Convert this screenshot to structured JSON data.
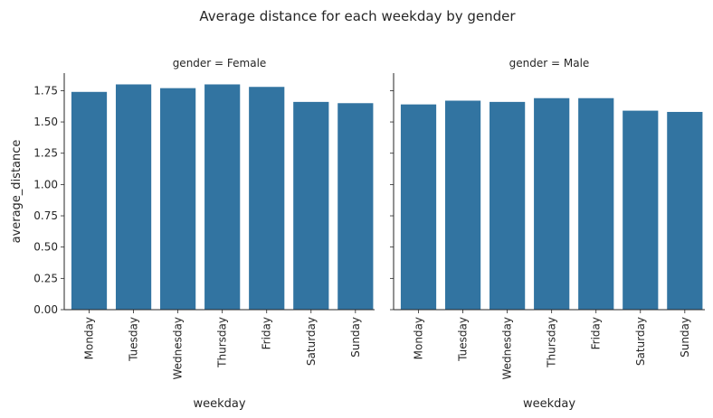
{
  "figure": {
    "title": "Average distance for each weekday by gender"
  },
  "chart_data": [
    {
      "type": "bar",
      "title": "gender = Female",
      "xlabel": "weekday",
      "ylabel": "average_distance",
      "categories": [
        "Monday",
        "Tuesday",
        "Wednesday",
        "Thursday",
        "Friday",
        "Saturday",
        "Sunday"
      ],
      "values": [
        1.74,
        1.8,
        1.77,
        1.8,
        1.78,
        1.66,
        1.65
      ],
      "ylim": [
        0,
        1.89
      ],
      "yticks": [
        "0.00",
        "0.25",
        "0.50",
        "0.75",
        "1.00",
        "1.25",
        "1.50",
        "1.75"
      ],
      "bar_color": "#3274a1",
      "grid": false
    },
    {
      "type": "bar",
      "title": "gender = Male",
      "xlabel": "weekday",
      "ylabel": "",
      "categories": [
        "Monday",
        "Tuesday",
        "Wednesday",
        "Thursday",
        "Friday",
        "Saturday",
        "Sunday"
      ],
      "values": [
        1.64,
        1.67,
        1.66,
        1.69,
        1.69,
        1.59,
        1.58
      ],
      "ylim": [
        0,
        1.89
      ],
      "yticks": [],
      "bar_color": "#3274a1",
      "grid": false
    }
  ]
}
